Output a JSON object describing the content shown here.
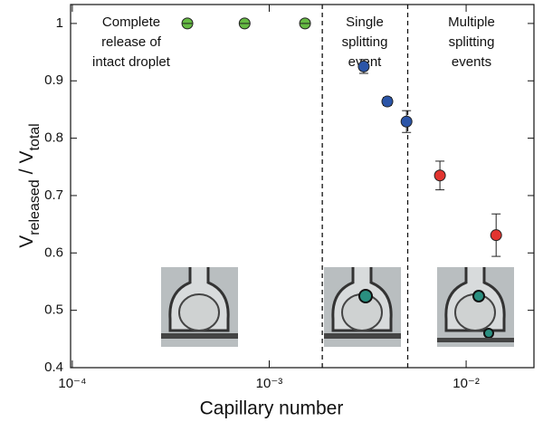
{
  "chart_data": {
    "type": "scatter",
    "x_label": "Capillary number",
    "y_label_parts": [
      "V",
      "released",
      "/",
      "V",
      "total"
    ],
    "xscale": "log",
    "xlim": [
      9.8e-05,
      0.0221
    ],
    "ylim": [
      0.4,
      1.033
    ],
    "xticks": [
      {
        "value": 0.0001,
        "label": "10⁻⁴"
      },
      {
        "value": 0.001,
        "label": "10⁻³"
      },
      {
        "value": 0.01,
        "label": "10⁻²"
      }
    ],
    "yticks": [
      0.4,
      0.5,
      0.6,
      0.7,
      0.8,
      0.9,
      1
    ],
    "vlines": [
      0.00186,
      0.00505
    ],
    "annotations": [
      [
        "Complete",
        "release of",
        "intact droplet"
      ],
      [
        "Single",
        "splitting",
        "event"
      ],
      [
        "Multiple",
        "splitting",
        "events"
      ]
    ],
    "series": [
      {
        "color": "#66bb44",
        "x": [
          0.000384,
          0.00075,
          0.00152
        ],
        "values": [
          1,
          1,
          1
        ]
      },
      {
        "color": "#2b55a8",
        "x": [
          0.00302,
          0.00398,
          0.00498
        ],
        "values": [
          0.925,
          0.864,
          0.829
        ],
        "errors": [
          0.012,
          0.007,
          0.019
        ]
      },
      {
        "color": "#e2342f",
        "x": [
          0.00736,
          0.0142
        ],
        "values": [
          0.735,
          0.631
        ],
        "errors": [
          0.025,
          0.037
        ]
      }
    ]
  }
}
